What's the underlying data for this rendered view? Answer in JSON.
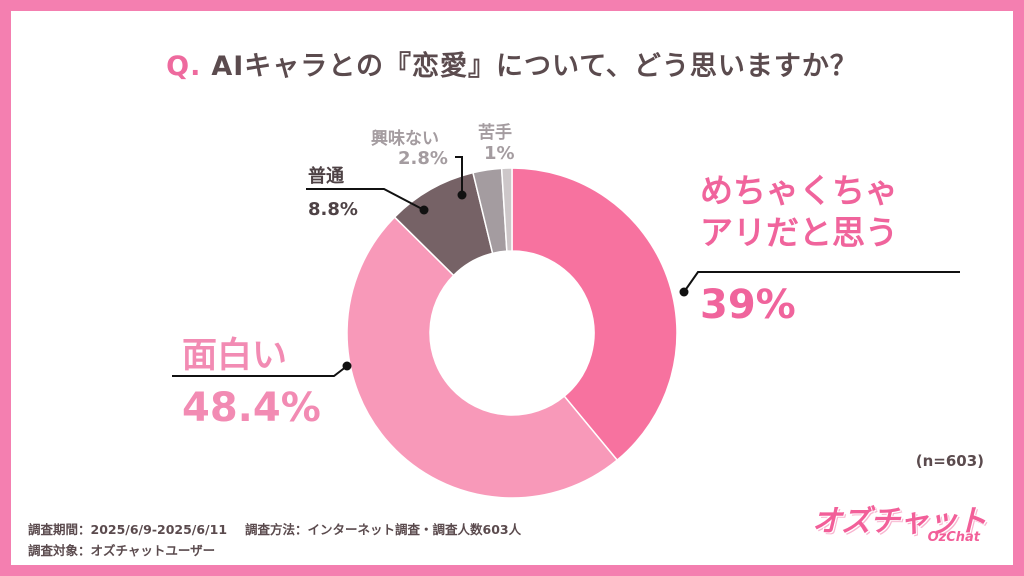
{
  "title": {
    "prefix": "Q.",
    "text": "AIキャラとの『恋愛』について、どう思いますか？"
  },
  "chart_data": {
    "type": "pie",
    "donut": true,
    "categories": [
      "めちゃくちゃアリだと思う",
      "面白い",
      "普通",
      "興味ない",
      "苦手"
    ],
    "values": [
      39,
      48.4,
      8.8,
      2.8,
      1
    ],
    "value_labels": [
      "39%",
      "48.4%",
      "8.8%",
      "2.8%",
      "1%"
    ],
    "colors": [
      "#f7729f",
      "#f899b9",
      "#766266",
      "#a49ca0",
      "#cdc7c9"
    ],
    "label_lines": [
      [
        "めちゃくちゃ",
        "アリだと思う"
      ],
      [
        "面白い"
      ],
      [
        "普通"
      ],
      [
        "興味ない"
      ],
      [
        "苦手"
      ]
    ]
  },
  "note": "(n=603)",
  "footer": {
    "period": "調査期間：2025/6/9-2025/6/11",
    "method": "調査方法：インターネット調査・調査人数603人",
    "target": "調査対象：オズチャットユーザー"
  },
  "logo": {
    "main": "オズチャット",
    "sub": "OzChat"
  }
}
